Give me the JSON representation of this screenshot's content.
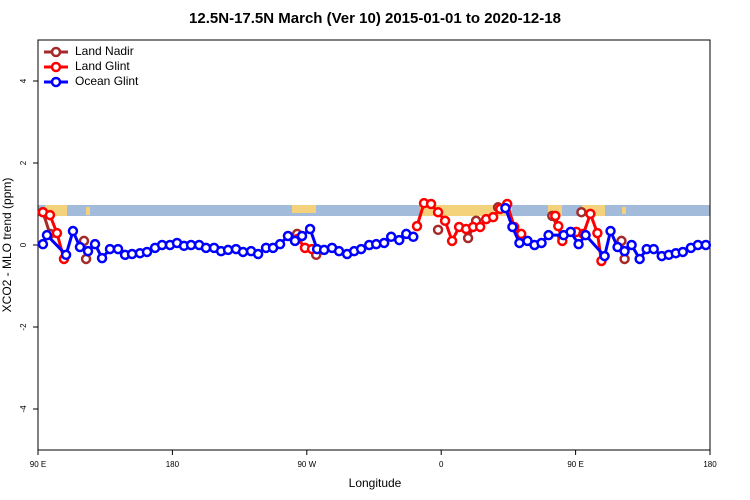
{
  "chart_data": {
    "type": "line",
    "title": "12.5N-17.5N March (Ver 10)   2015-01-01 to 2020-12-18",
    "x_label": "Longitude",
    "y_label": "XCO2 - MLO trend (ppm)",
    "xlim": [
      90,
      540
    ],
    "ylim": [
      -5,
      5
    ],
    "xticks": [
      {
        "value": 90,
        "label": "90 E"
      },
      180,
      {
        "value": 270,
        "label": "90 W"
      },
      {
        "value": 360,
        "label": "0"
      },
      {
        "value": 450,
        "label": "90 E"
      },
      {
        "value": 540,
        "label": "180"
      }
    ],
    "yticks": [
      -4,
      -2,
      0,
      2,
      4
    ],
    "legend": "top-left",
    "series": [
      {
        "name": "Land Nadir",
        "color": "#a52a2a",
        "x": [
          93.3,
          98,
          null,
          120.8,
          122.2,
          null,
          263.5,
          null,
          276.3,
          null,
          357.9,
          null,
          378,
          383.4,
          null,
          398.1,
          null,
          434.4,
          441.1,
          null,
          453.9,
          null,
          480.7,
          482.8
        ],
        "values": [
          0.8,
          0.27,
          null,
          0.1,
          -0.34,
          null,
          0.27,
          null,
          -0.24,
          null,
          0.37,
          null,
          0.17,
          0.59,
          null,
          0.92,
          null,
          0.71,
          0.2,
          null,
          0.8,
          null,
          0.1,
          -0.34
        ]
      },
      {
        "name": "Land Glint",
        "color": "#ff0000",
        "x": [
          93.3,
          98,
          102.7,
          107.4,
          null,
          264.1,
          268.8,
          273.5,
          null,
          343.8,
          348.5,
          353.2,
          357.9,
          362.6,
          367.3,
          372,
          376.7,
          381.4,
          386.1,
          390.1,
          394.8,
          399.5,
          404.2,
          408.9,
          413.6,
          null,
          436.4,
          438.4,
          441.1,
          null,
          450.5,
          455.2,
          459.9,
          464.6,
          467.3
        ],
        "values": [
          0.8,
          0.73,
          0.29,
          -0.34,
          null,
          0.15,
          -0.07,
          -0.1,
          null,
          0.46,
          1.02,
          1.0,
          0.8,
          0.59,
          0.1,
          0.44,
          0.39,
          0.44,
          0.44,
          0.63,
          0.68,
          0.88,
          1.0,
          0.44,
          0.27,
          null,
          0.71,
          0.46,
          0.1,
          null,
          0.32,
          0.27,
          0.76,
          0.29,
          -0.39
        ]
      },
      {
        "name": "Ocean Glint",
        "color": "#0000ff",
        "x": [
          93.3,
          96,
          108.8,
          113.4,
          118.1,
          123.5,
          128.2,
          132.9,
          138.2,
          143.6,
          148.3,
          153,
          158.3,
          163,
          168.4,
          173.1,
          178.4,
          183.1,
          187.8,
          192.5,
          197.9,
          202.5,
          207.9,
          212.6,
          217.3,
          222.6,
          227.3,
          232.7,
          237.4,
          242.7,
          247.4,
          252.1,
          257.4,
          262.1,
          266.8,
          272.2,
          276.9,
          281.6,
          286.9,
          291.6,
          297,
          301.7,
          306.4,
          311.8,
          316.5,
          321.8,
          326.5,
          331.9,
          336.6,
          341.3,
          null,
          403,
          407.7,
          412.4,
          417.8,
          422.5,
          427.2,
          431.9,
          442,
          446.7,
          452,
          456.7,
          469.4,
          473.4,
          478.1,
          482.8,
          487.5,
          492.9,
          497.6,
          502.3,
          507.7,
          512.4,
          517.1,
          521.8,
          527.2,
          531.9,
          537.2
        ],
        "values": [
          0.02,
          0.24,
          -0.24,
          0.34,
          -0.05,
          -0.15,
          0.02,
          -0.32,
          -0.1,
          -0.1,
          -0.24,
          -0.22,
          -0.2,
          -0.17,
          -0.07,
          0,
          0,
          0.05,
          -0.02,
          0,
          0,
          -0.07,
          -0.07,
          -0.15,
          -0.12,
          -0.1,
          -0.17,
          -0.15,
          -0.22,
          -0.07,
          -0.07,
          0.02,
          0.22,
          0.1,
          0.22,
          0.39,
          -0.1,
          -0.12,
          -0.07,
          -0.15,
          -0.22,
          -0.15,
          -0.1,
          0,
          0.02,
          0.05,
          0.2,
          0.12,
          0.27,
          0.2,
          null,
          0.9,
          0.44,
          0.05,
          0.1,
          0,
          0.05,
          0.24,
          0.24,
          0.32,
          0.02,
          0.24,
          -0.27,
          0.34,
          -0.05,
          -0.15,
          0,
          -0.34,
          -0.1,
          -0.1,
          -0.27,
          -0.24,
          -0.2,
          -0.17,
          -0.07,
          0,
          0
        ]
      }
    ]
  }
}
